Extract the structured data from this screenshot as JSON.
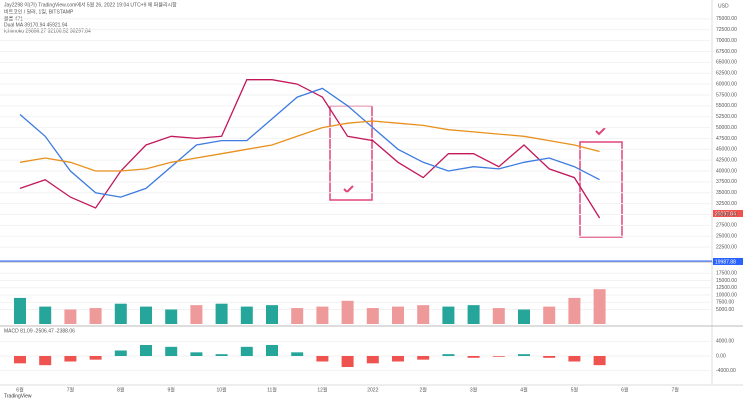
{
  "header": {
    "publisher": "Jay2298 이(가) TradingView.com에서 5월 26, 2022 19:04 UTC+9 에 퍼블리시함",
    "symbol": "비트코인 / 달러, 1일, BITSTAMP",
    "volume": "볼륨 471",
    "dual_ma": "Dual MA 39170.94 45921.94",
    "ichimoku": "Ichimoku 29856.27 32100.52 30297.84",
    "macd": "MACD 81.09 -2506.47 -2388.06",
    "price_tag": "29297.84",
    "level_tag": "19987.88",
    "currency": "USD",
    "footer": "TradingView"
  },
  "chart_data": [
    {
      "type": "line",
      "categories": [
        "6월",
        null,
        "7월",
        null,
        "8월",
        null,
        "9월",
        null,
        "10월",
        null,
        "11월",
        null,
        "12월",
        null,
        "2022",
        null,
        "2월",
        null,
        "3월",
        null,
        "4월",
        null,
        "5월",
        null,
        "6월",
        null,
        "7월",
        null
      ],
      "series": [
        {
          "color": "#c2185b",
          "values": [
            36000,
            38000,
            34000,
            31500,
            40000,
            46000,
            48000,
            47500,
            48000,
            61000,
            61000,
            60000,
            57000,
            48000,
            47000,
            42000,
            38500,
            44000,
            44000,
            41000,
            46000,
            40500,
            38500,
            29200,
            null,
            null,
            null,
            null
          ]
        },
        {
          "color": "#3d7be0",
          "values": [
            53000,
            48000,
            40000,
            35000,
            34000,
            36000,
            41000,
            46000,
            47000,
            47000,
            52000,
            57000,
            59000,
            55000,
            50000,
            45000,
            42000,
            40000,
            41000,
            40500,
            42000,
            43000,
            41000,
            38000,
            null,
            null,
            null,
            null
          ]
        },
        {
          "color": "#e8901e",
          "values": [
            42000,
            43000,
            42000,
            40000,
            40000,
            40500,
            42000,
            43000,
            44000,
            45000,
            46000,
            48000,
            50000,
            51000,
            51500,
            51000,
            50500,
            49500,
            49000,
            48500,
            48000,
            47000,
            46000,
            44500,
            null,
            null,
            null,
            null
          ]
        }
      ],
      "ylim": [
        20000,
        77500
      ],
      "yticks": [
        {
          "value": 22500,
          "label": "22500.00"
        },
        {
          "value": 25000,
          "label": "25000.00"
        },
        {
          "value": 27500,
          "label": "27500.00"
        },
        {
          "value": 30000,
          "label": "30000.00"
        },
        {
          "value": 32500,
          "label": "32500.00"
        },
        {
          "value": 35000,
          "label": "35000.00"
        },
        {
          "value": 37500,
          "label": "37500.00"
        },
        {
          "value": 40000,
          "label": "40000.00"
        },
        {
          "value": 42500,
          "label": "42500.00"
        },
        {
          "value": 45000,
          "label": "45000.00"
        },
        {
          "value": 47500,
          "label": "47500.00"
        },
        {
          "value": 50000,
          "label": "50000.00"
        },
        {
          "value": 52500,
          "label": "52500.00"
        },
        {
          "value": 55000,
          "label": "55000.00"
        },
        {
          "value": 57500,
          "label": "57500.00"
        },
        {
          "value": 60000,
          "label": "60000.00"
        },
        {
          "value": 62500,
          "label": "62500.00"
        },
        {
          "value": 65000,
          "label": "65000.00"
        },
        {
          "value": 67500,
          "label": "67500.00"
        },
        {
          "value": 70000,
          "label": "70000.00"
        },
        {
          "value": 72500,
          "label": "72500.00"
        },
        {
          "value": 75000,
          "label": "75000.00"
        }
      ]
    },
    {
      "type": "bar",
      "color": "#26a69a",
      "down_color": "#ef9a9a",
      "values": [
        9000,
        6000,
        5000,
        5500,
        7000,
        6000,
        5000,
        6500,
        7000,
        6000,
        6500,
        5500,
        6000,
        8000,
        5500,
        6000,
        6500,
        6000,
        6500,
        5500,
        5000,
        6000,
        9000,
        12000
      ],
      "ylim": [
        0,
        20000
      ],
      "yticks": [
        {
          "value": 5000,
          "label": "5000.00"
        },
        {
          "value": 7500,
          "label": "7500.00"
        },
        {
          "value": 10000,
          "label": "10000.00"
        },
        {
          "value": 12500,
          "label": "12500.00"
        },
        {
          "value": 15000,
          "label": "15000.00"
        },
        {
          "value": 17500,
          "label": "17500.00"
        }
      ]
    },
    {
      "type": "bar",
      "color": "#26a69a",
      "down_color": "#ef5350",
      "values": [
        -2000,
        -2500,
        -1500,
        -1000,
        1500,
        3000,
        2500,
        1000,
        500,
        2500,
        3000,
        1000,
        -1500,
        -3000,
        -2000,
        -1500,
        -1000,
        500,
        -500,
        -200,
        500,
        -500,
        -1500,
        -2500
      ],
      "ylim": [
        -6000,
        6000
      ],
      "yticks": [
        {
          "value": 4000,
          "label": "4000.00"
        },
        {
          "value": 0,
          "label": "0.00"
        },
        {
          "value": -4000,
          "label": "-4000.00"
        }
      ]
    }
  ]
}
